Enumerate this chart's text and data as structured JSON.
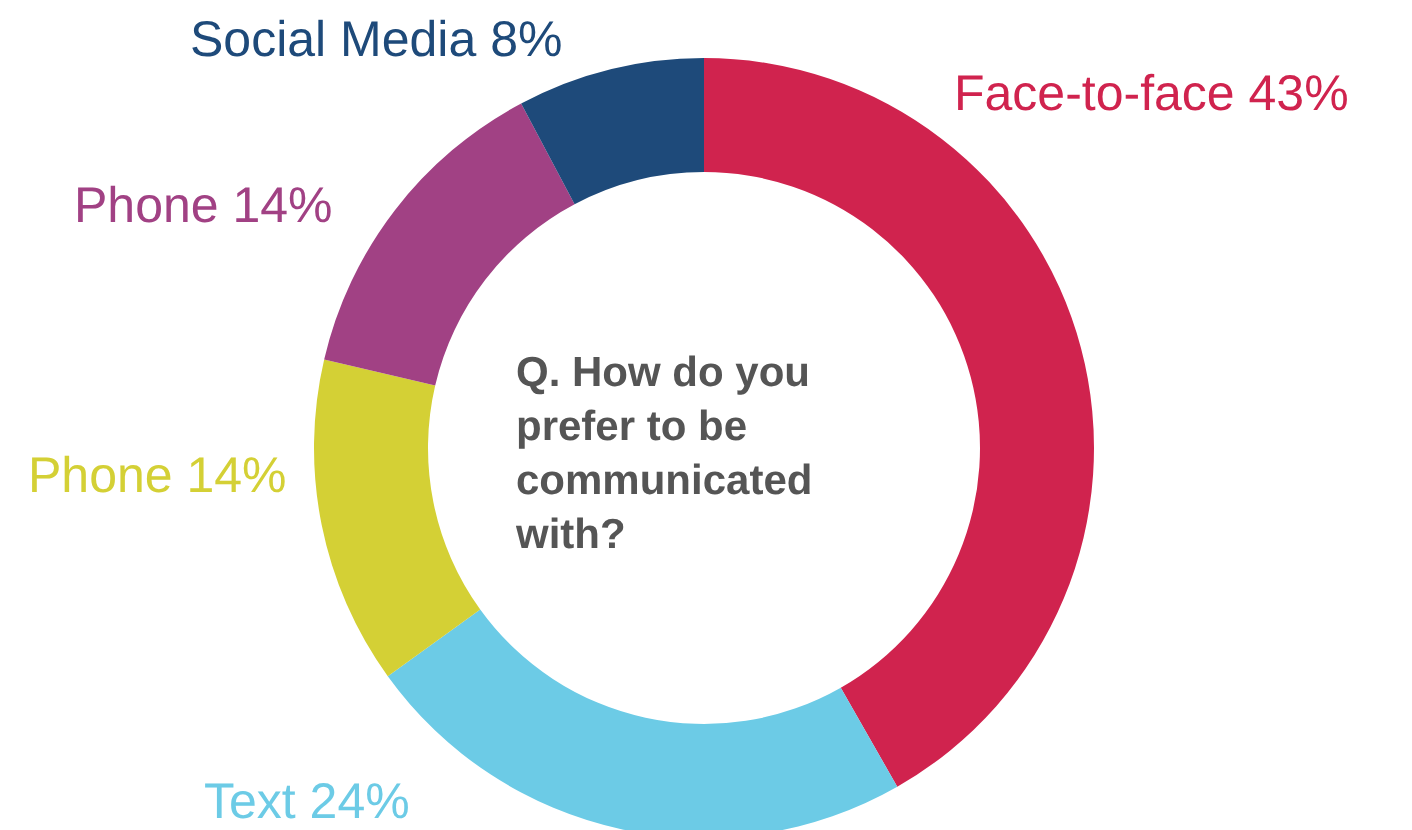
{
  "chart_data": {
    "type": "donut",
    "title": "Q. How do you prefer to be communicated with?",
    "categories": [
      "Face-to-face",
      "Text",
      "Phone",
      "Phone",
      "Social Media"
    ],
    "values": [
      43,
      24,
      14,
      14,
      8
    ],
    "value_labels": [
      "43%",
      "24%",
      "14%",
      "14%",
      "8%"
    ],
    "colors": [
      "#d0234e",
      "#6ccbe6",
      "#d4d035",
      "#a14184",
      "#1e4a7a"
    ],
    "legend": false
  }
}
